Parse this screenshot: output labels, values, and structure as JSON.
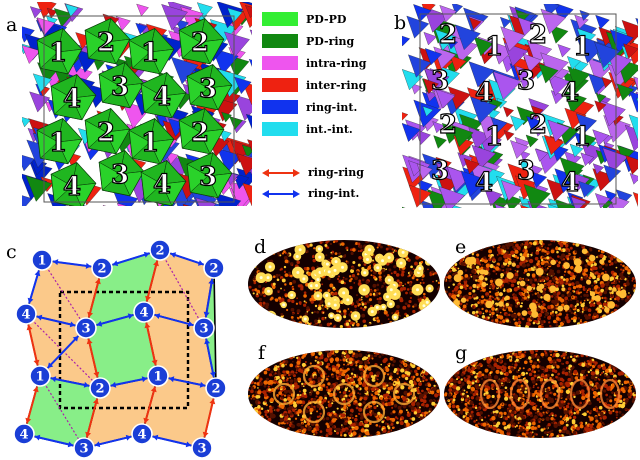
{
  "panels": {
    "a": {
      "letter": "a"
    },
    "b": {
      "letter": "b"
    },
    "c": {
      "letter": "c"
    },
    "d": {
      "letter": "d"
    },
    "e": {
      "letter": "e"
    },
    "f": {
      "letter": "f"
    },
    "g": {
      "letter": "g"
    }
  },
  "legend": {
    "items": [
      {
        "label": "PD-PD",
        "color": "#33ee33"
      },
      {
        "label": "PD-ring",
        "color": "#118811"
      },
      {
        "label": "intra-ring",
        "color": "#ee55ee"
      },
      {
        "label": "inter-ring",
        "color": "#ee2211"
      },
      {
        "label": "ring-int.",
        "color": "#1133ee"
      },
      {
        "label": "int.-int.",
        "color": "#22ddee"
      }
    ],
    "arrows": [
      {
        "label": "ring-ring",
        "color": "#ee3311"
      },
      {
        "label": "ring-int.",
        "color": "#1133ee"
      }
    ]
  },
  "panel_a_labels": [
    "1",
    "2",
    "1",
    "2",
    "4",
    "3",
    "4",
    "3",
    "1",
    "2",
    "1",
    "2",
    "4",
    "3",
    "4",
    "3"
  ],
  "panel_b_labels": [
    "2",
    "1",
    "2",
    "1",
    "3",
    "4",
    "3",
    "4",
    "2",
    "1",
    "2",
    "1",
    "3",
    "4",
    "3",
    "4"
  ],
  "panel_c_labels": [
    "1",
    "2",
    "2",
    "4",
    "3",
    "4",
    "3",
    "1",
    "2",
    "1",
    "4",
    "3",
    "4",
    "3"
  ],
  "colors": {
    "ring_ring_arrow": "#ee3311",
    "ring_int_arrow": "#1133ee",
    "tile_green": "#88ee88",
    "tile_orange": "#fbc98a",
    "node_blue": "#1a3ed6"
  }
}
